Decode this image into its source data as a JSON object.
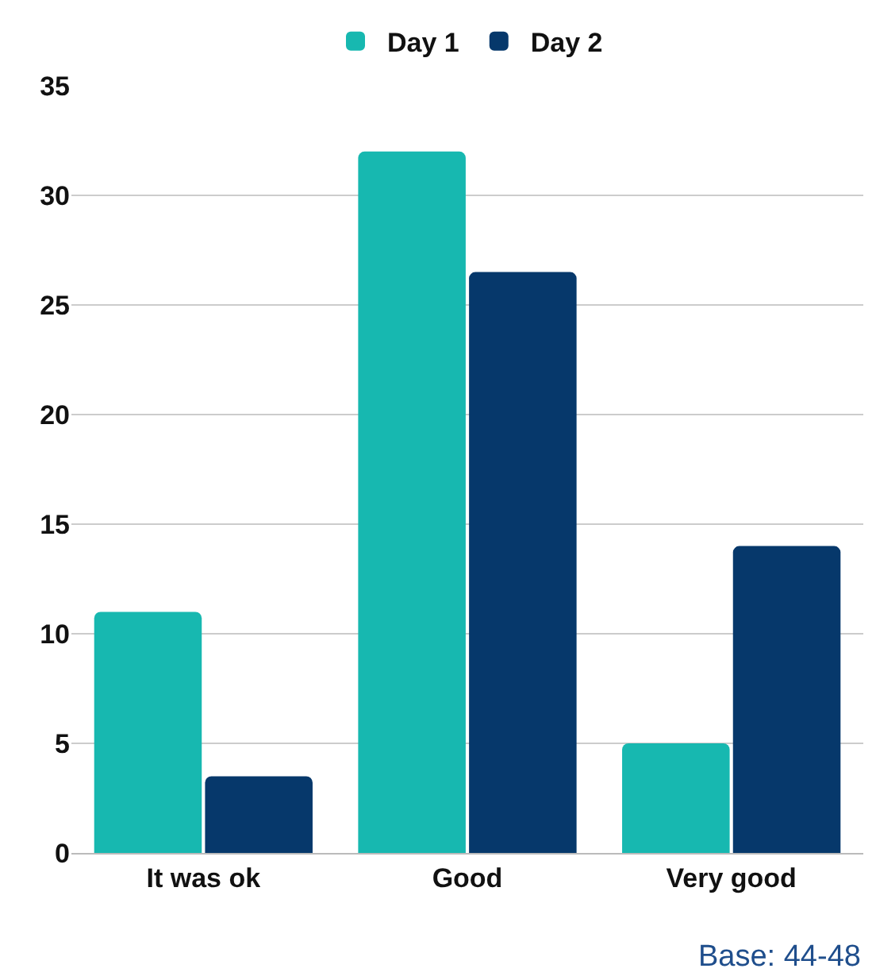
{
  "chart_data": {
    "type": "bar",
    "categories": [
      "It was ok",
      "Good",
      "Very good"
    ],
    "series": [
      {
        "name": "Day 1",
        "color": "#17b8b0",
        "values": [
          11,
          32,
          5
        ]
      },
      {
        "name": "Day 2",
        "color": "#06386b",
        "values": [
          3.5,
          26.5,
          14
        ]
      }
    ],
    "ylim": [
      0,
      35
    ],
    "yticks": [
      0,
      5,
      10,
      15,
      20,
      25,
      30,
      35
    ],
    "grid": "y",
    "legend": "top",
    "annotations": [
      "Base: 44-48"
    ]
  }
}
